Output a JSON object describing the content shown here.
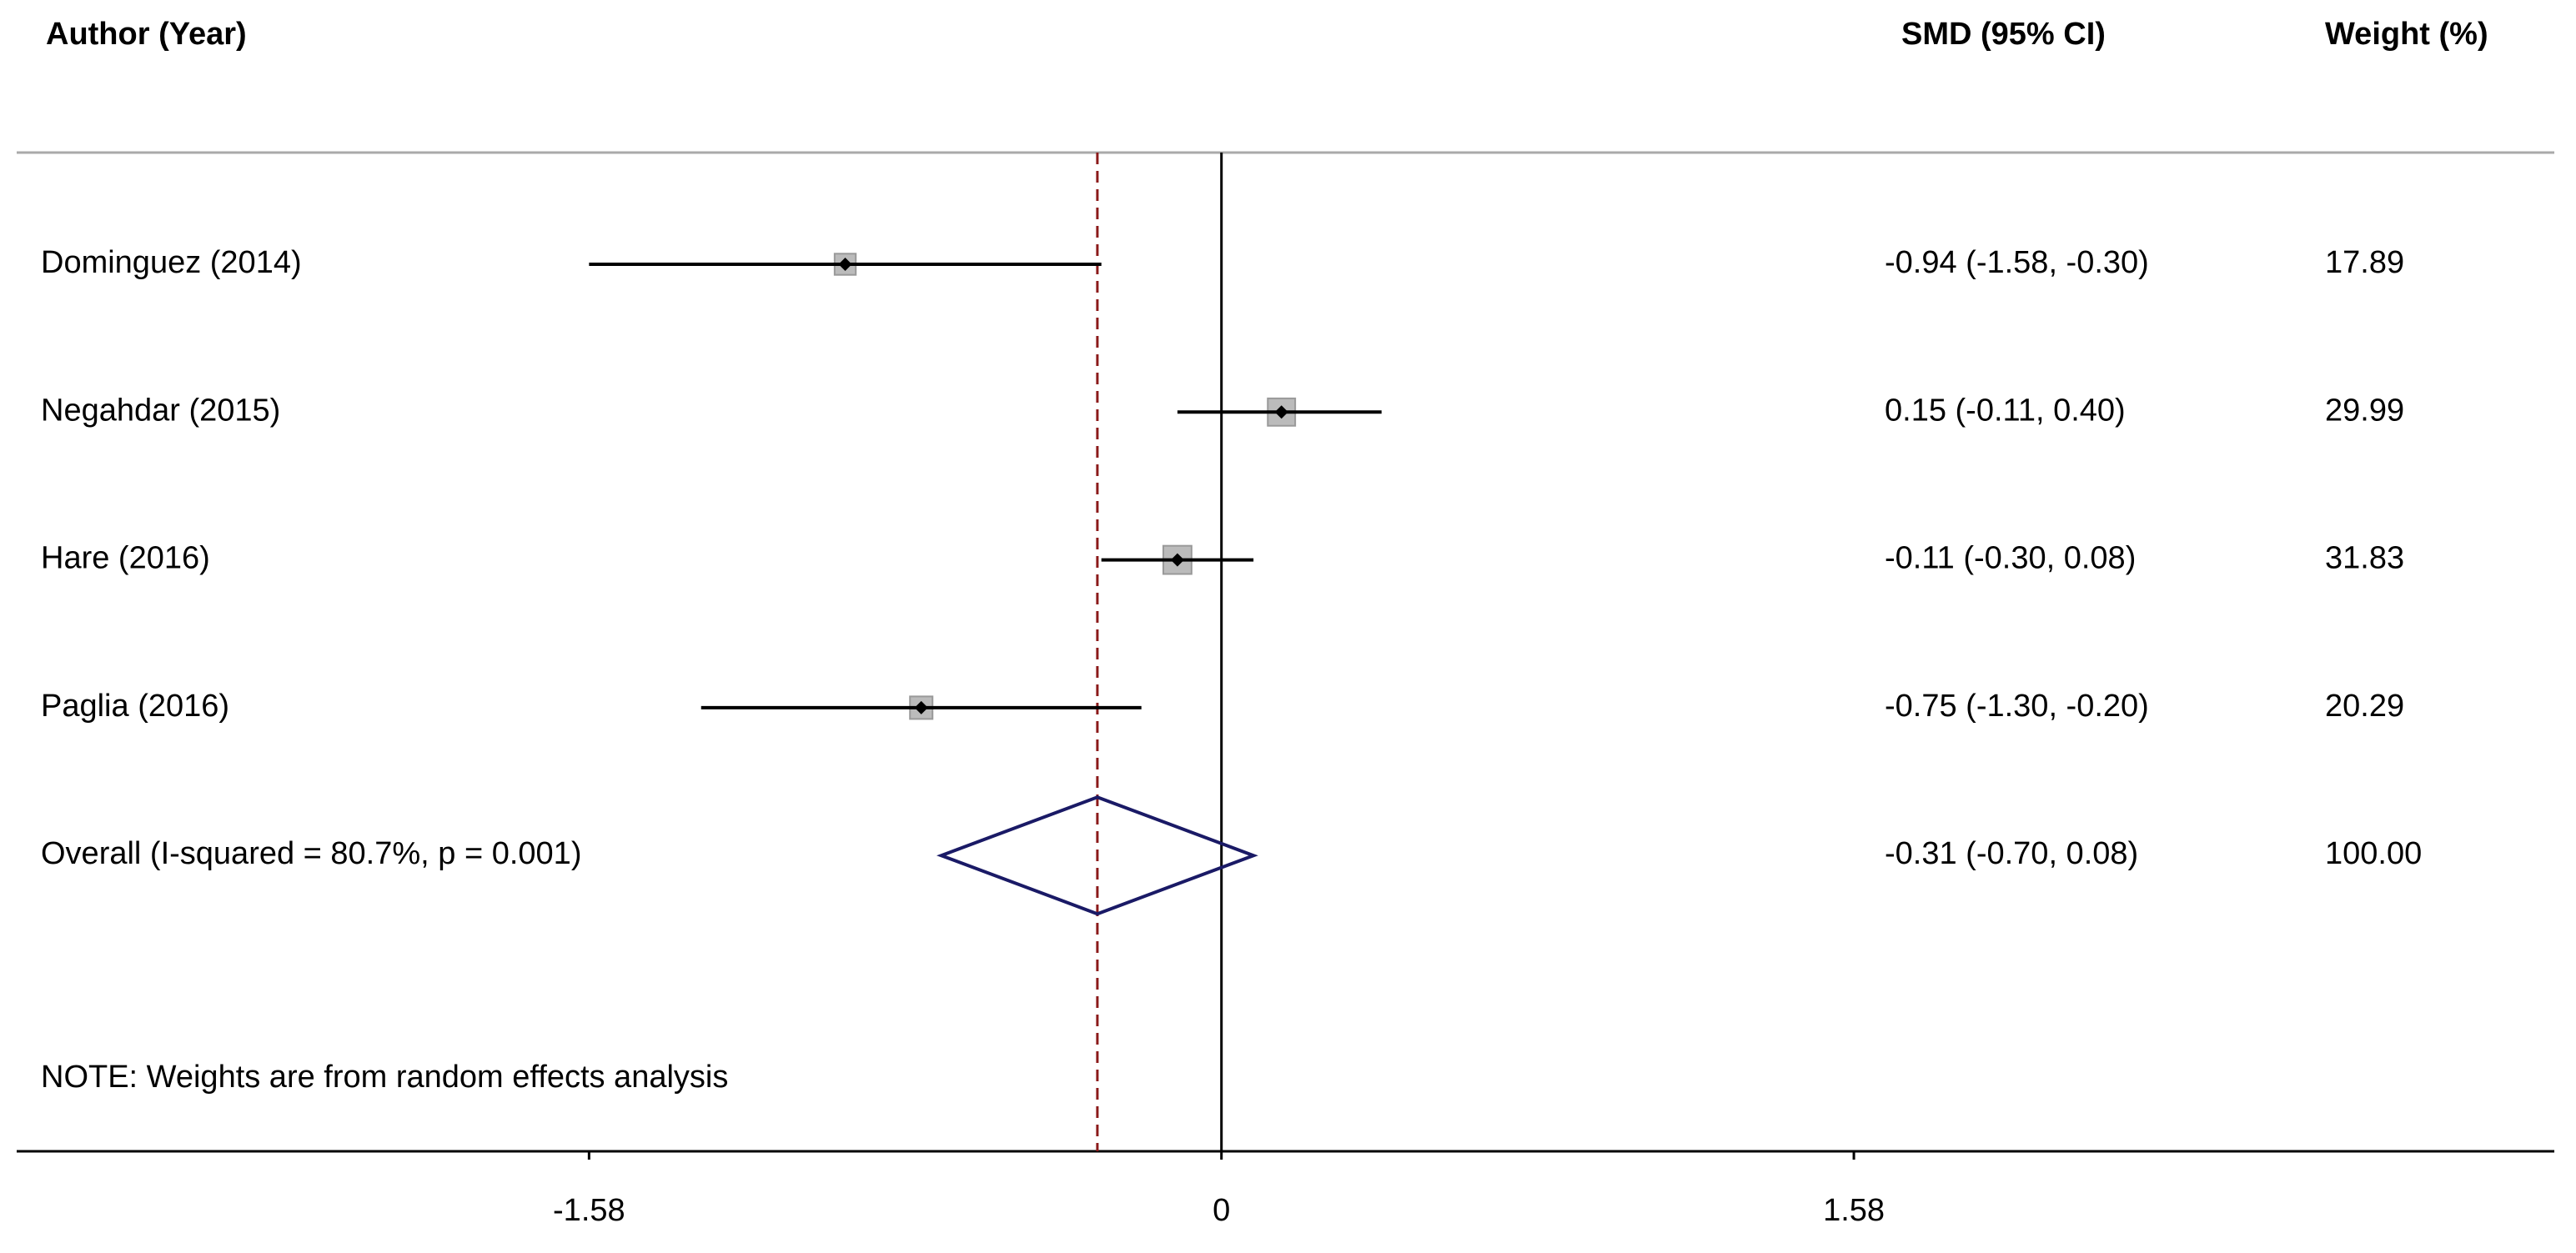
{
  "chart_data": {
    "type": "forest",
    "headers": {
      "study": "Author (Year)",
      "effect": "SMD (95% CI)",
      "weight": "Weight (%)"
    },
    "categories": [
      "Dominguez (2014)",
      "Negahdar (2015)",
      "Hare (2016)",
      "Paglia  (2016)",
      "Overall  (I-squared = 80.7%, p = 0.001)"
    ],
    "values": [
      -0.94,
      0.15,
      -0.11,
      -0.75,
      -0.31
    ],
    "lower": [
      -1.58,
      -0.11,
      -0.3,
      -1.3,
      -0.7
    ],
    "upper": [
      -0.3,
      0.4,
      0.08,
      -0.2,
      0.08
    ],
    "value_labels": [
      "-0.94 (-1.58, -0.30)",
      "0.15 (-0.11, 0.40)",
      "-0.11 (-0.30, 0.08)",
      "-0.75 (-1.30, -0.20)",
      "-0.31 (-0.70, 0.08)"
    ],
    "weights": [
      17.89,
      29.99,
      31.83,
      20.29,
      100
    ],
    "weight_labels": [
      "17.89",
      "29.99",
      "31.83",
      "20.29",
      "100.00"
    ],
    "note": "NOTE: Weights are from random effects analysis",
    "xlim": [
      -3.01,
      3.33
    ],
    "xticks": [
      -1.58,
      0,
      1.58
    ],
    "box_color": "#bbbbbb",
    "line_color": "#000000",
    "diamond_color": "#1a1a66",
    "overall_line_color": "#8b1a1a"
  }
}
